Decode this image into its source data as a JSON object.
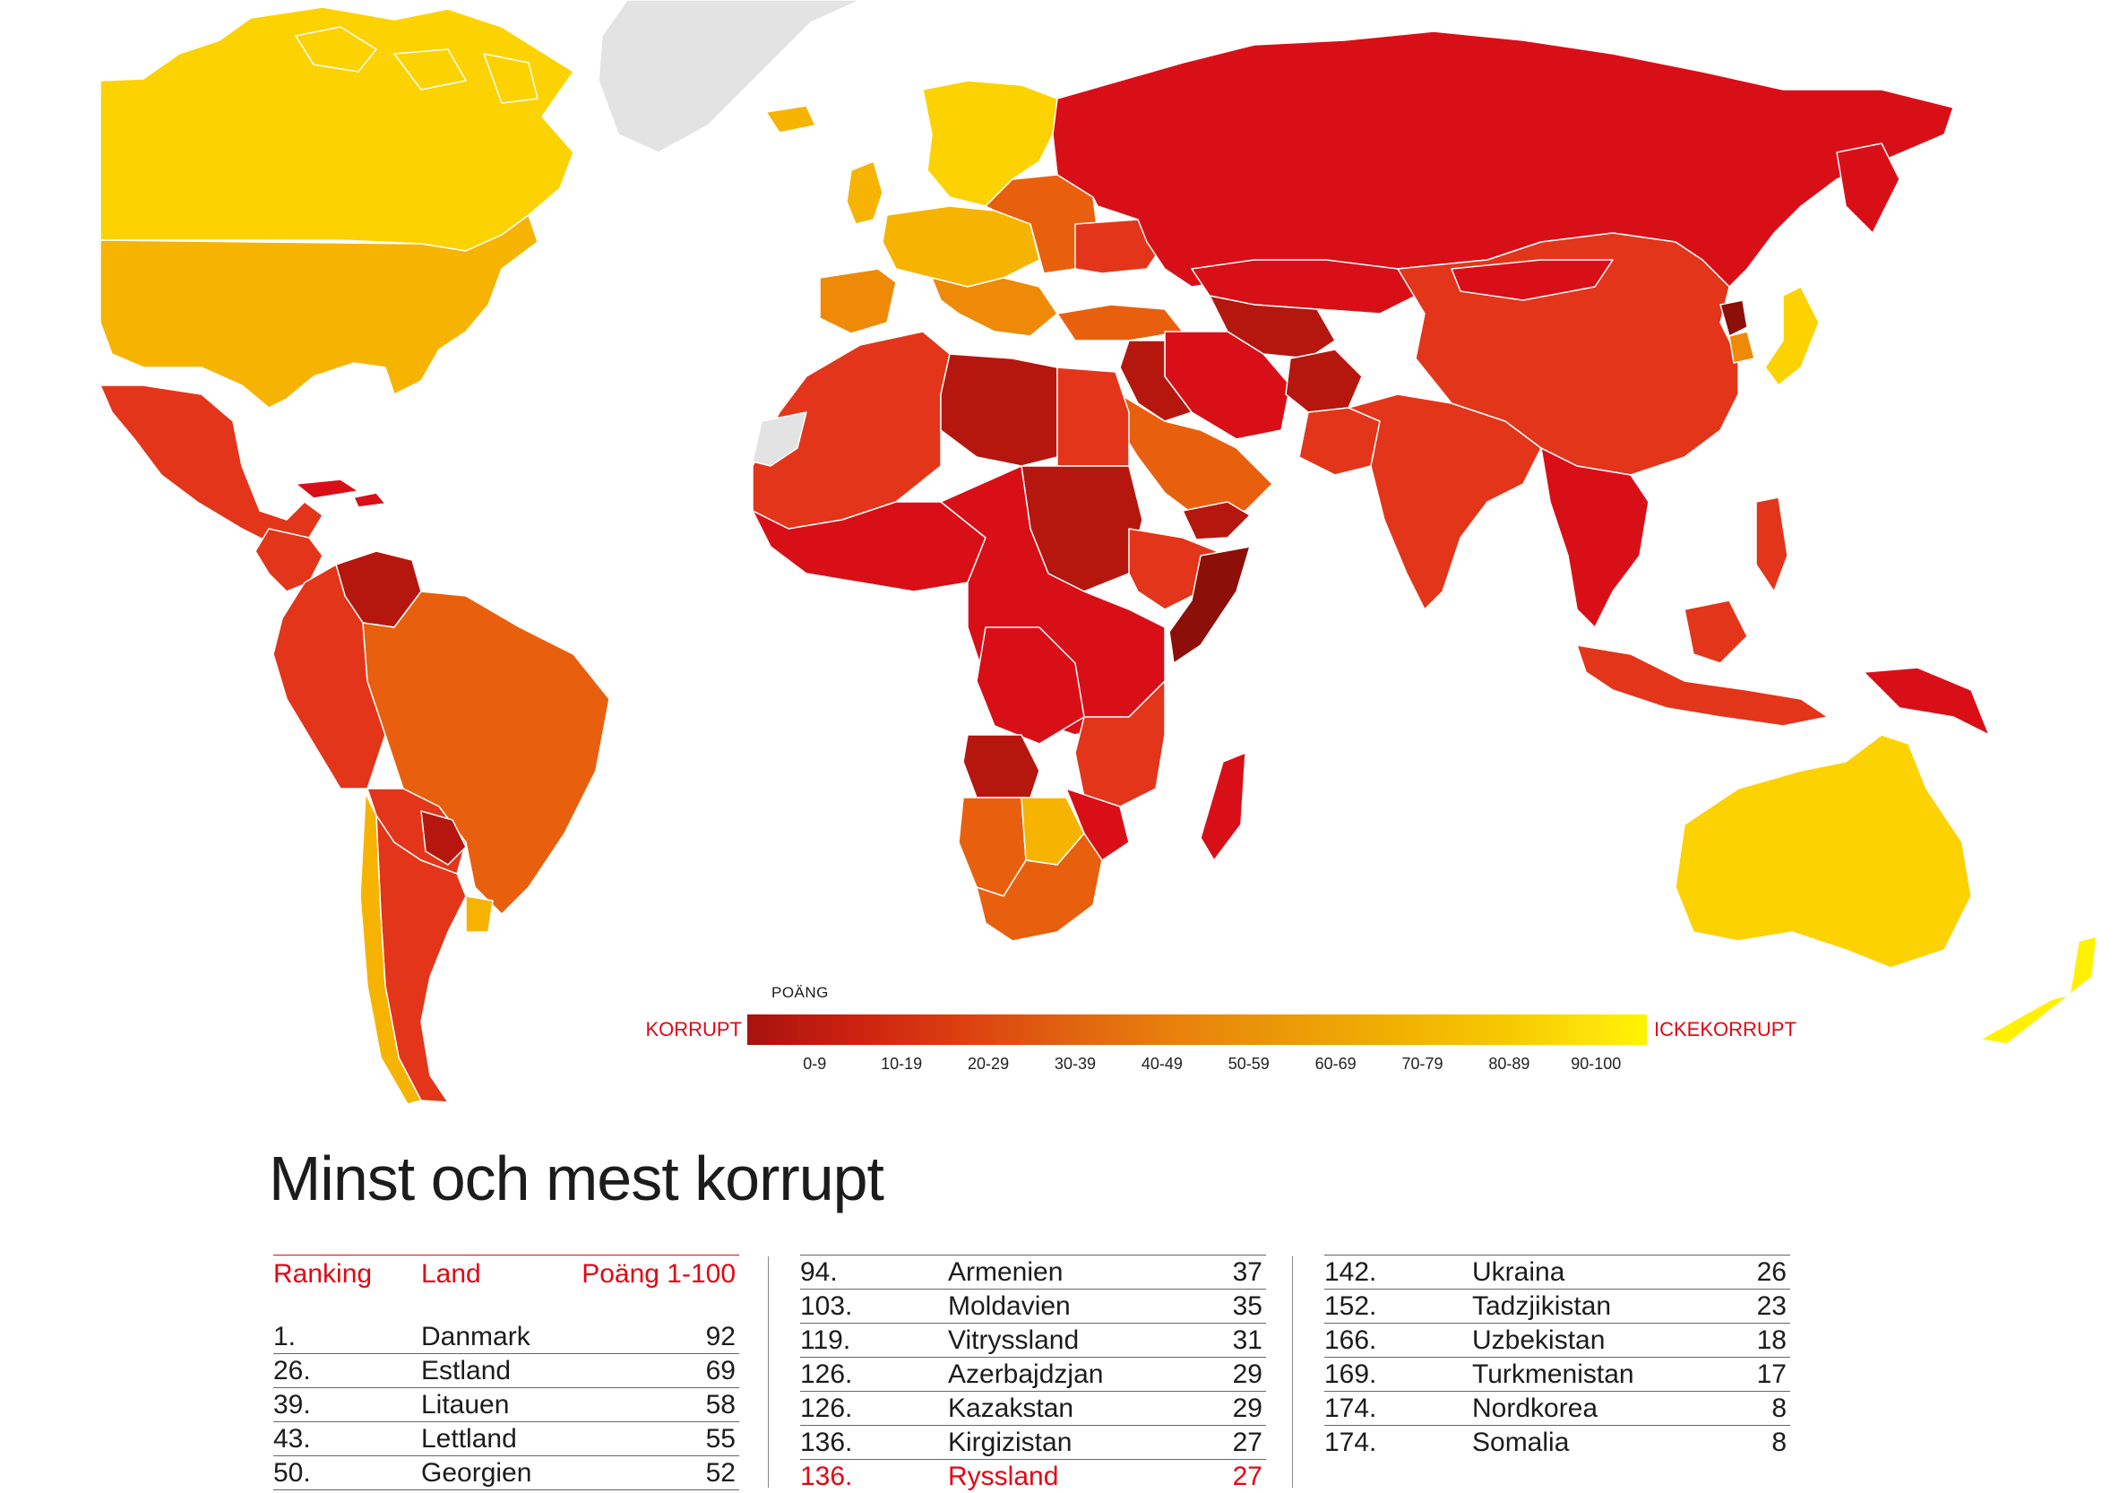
{
  "legend": {
    "title": "POÄNG",
    "left_label": "KORRUPT",
    "right_label": "ICKEKORRUPT",
    "ticks": [
      "0-9",
      "10-19",
      "20-29",
      "30-39",
      "40-49",
      "50-59",
      "60-69",
      "70-79",
      "80-89",
      "90-100"
    ]
  },
  "colors": {
    "score_0_9": "#8c0f0a",
    "score_10_19": "#b5170f",
    "score_20_29": "#d90f18",
    "score_30_39": "#e3351a",
    "score_40_49": "#e8600e",
    "score_50_59": "#ee8a08",
    "score_60_69": "#f6b400",
    "score_70_79": "#fcd200",
    "score_80_89": "#ffd800",
    "score_90_100": "#fff100",
    "no_data": "#e3e3e3",
    "accent": "#e30613"
  },
  "heading": "Minst och mest korrupt",
  "table": {
    "headers": {
      "rank": "Ranking",
      "country": "Land",
      "score": "Poäng 1-100"
    },
    "col1": [
      {
        "rank": "1.",
        "country": "Danmark",
        "score": "92"
      },
      {
        "rank": "26.",
        "country": "Estland",
        "score": "69"
      },
      {
        "rank": "39.",
        "country": "Litauen",
        "score": "58"
      },
      {
        "rank": "43.",
        "country": "Lettland",
        "score": "55"
      },
      {
        "rank": "50.",
        "country": "Georgien",
        "score": "52"
      }
    ],
    "col2": [
      {
        "rank": "94.",
        "country": "Armenien",
        "score": "37"
      },
      {
        "rank": "103.",
        "country": "Moldavien",
        "score": "35"
      },
      {
        "rank": "119.",
        "country": "Vitryssland",
        "score": "31"
      },
      {
        "rank": "126.",
        "country": "Azerbajdzjan",
        "score": "29"
      },
      {
        "rank": "126.",
        "country": "Kazakstan",
        "score": "29"
      },
      {
        "rank": "136.",
        "country": "Kirgizistan",
        "score": "27"
      },
      {
        "rank": "136.",
        "country": "Ryssland",
        "score": "27",
        "highlight": true
      }
    ],
    "col3": [
      {
        "rank": "142.",
        "country": "Ukraina",
        "score": "26"
      },
      {
        "rank": "152.",
        "country": "Tadzjikistan",
        "score": "23"
      },
      {
        "rank": "166.",
        "country": "Uzbekistan",
        "score": "18"
      },
      {
        "rank": "169.",
        "country": "Turkmenistan",
        "score": "17"
      },
      {
        "rank": "174.",
        "country": "Nordkorea",
        "score": "8"
      },
      {
        "rank": "174.",
        "country": "Somalia",
        "score": "8"
      }
    ]
  }
}
